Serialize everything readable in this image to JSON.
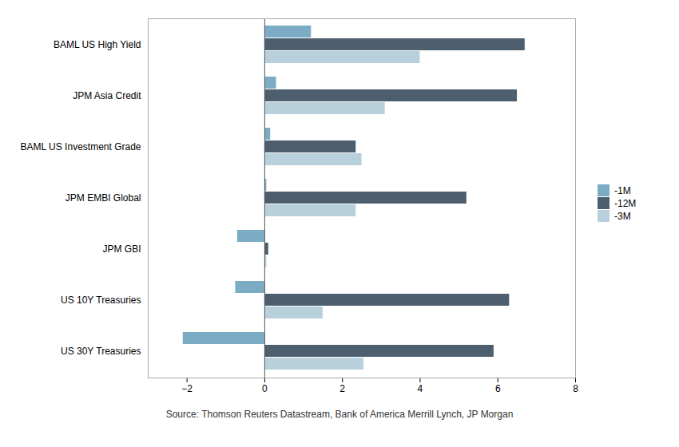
{
  "chart_data": {
    "type": "bar",
    "orientation": "horizontal",
    "categories": [
      "BAML US High Yield",
      "JPM Asia Credit",
      "BAML US Investment Grade",
      "JPM EMBI Global",
      "JPM GBI",
      "US 10Y Treasuries",
      "US 30Y Treasuries"
    ],
    "series": [
      {
        "name": "-1M",
        "color": "#7bacc4",
        "values": [
          1.2,
          0.3,
          0.15,
          0.05,
          -0.7,
          -0.75,
          -2.1
        ]
      },
      {
        "name": "-12M",
        "color": "#4d5f6e",
        "values": [
          6.7,
          6.5,
          2.35,
          5.2,
          0.1,
          6.3,
          5.9
        ]
      },
      {
        "name": "-3M",
        "color": "#b8d0dc",
        "values": [
          4.0,
          3.1,
          2.5,
          2.35,
          0.05,
          1.5,
          2.55
        ]
      }
    ],
    "xlim": [
      -3,
      8
    ],
    "xticks": [
      -2,
      0,
      2,
      4,
      6,
      8
    ],
    "grid": false,
    "legend": "right",
    "caption": "Source: Thomson Reuters Datastream, Bank of America Merrill Lynch, JP Morgan"
  }
}
